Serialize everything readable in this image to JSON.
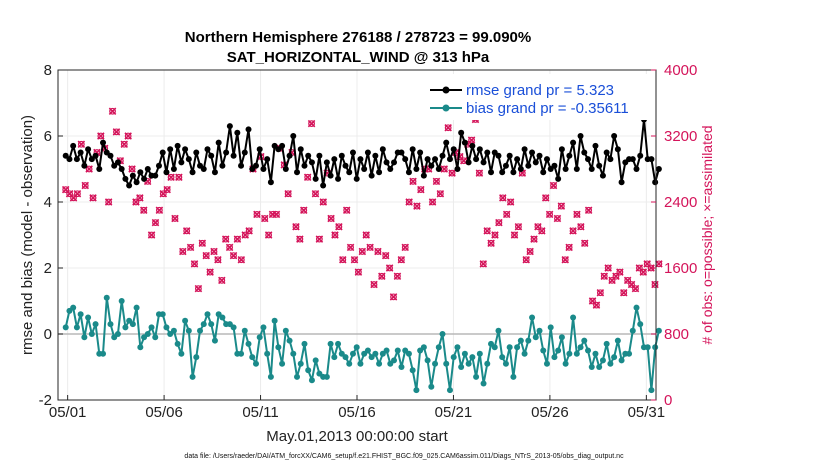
{
  "chart_data": {
    "type": "line",
    "title_line1": "Northern Hemisphere 276188 / 278723 = 99.090%",
    "title_line2": "SAT_HORIZONTAL_WIND @ 313 hPa",
    "xlabel": "May.01,2013 00:00:00 start",
    "ylabel_left": "rmse and bias (model - observation)",
    "ylabel_right": "# of obs: o=possible; ×=assimilated",
    "footnote": "data file: /Users/raeder/DAI/ATM_forcXX/CAM6_setup/f.e21.FHIST_BGC.f09_025.CAM6assim.011/Diags_NTrS_2013-05/obs_diag_output.nc",
    "xlim": [
      0.5,
      31.5
    ],
    "ylim_left": [
      -2,
      8
    ],
    "ylim_right": [
      0,
      4000
    ],
    "xticks": [
      1,
      6,
      11,
      16,
      21,
      26,
      31
    ],
    "xtick_labels": [
      "05/01",
      "05/06",
      "05/11",
      "05/16",
      "05/21",
      "05/26",
      "05/31"
    ],
    "yticks_left": [
      "-2",
      "0",
      "2",
      "4",
      "6",
      "8"
    ],
    "yticks_right": [
      "0",
      "800",
      "1600",
      "2400",
      "3200",
      "4000"
    ],
    "series": [
      {
        "name": "rmse",
        "legend": "rmse grand pr = 5.323",
        "color": "#000000",
        "marker": "filled-circle",
        "axis": "left",
        "values": [
          5.4,
          5.3,
          5.7,
          5.3,
          5.5,
          5.1,
          5.6,
          5.3,
          5.4,
          5.0,
          5.8,
          5.5,
          5.4,
          5.1,
          5.2,
          5.0,
          4.7,
          4.5,
          4.8,
          4.6,
          4.9,
          4.7,
          5.0,
          4.8,
          4.8,
          5.1,
          5.5,
          4.9,
          5.6,
          5.0,
          5.7,
          5.2,
          5.6,
          5.3,
          4.9,
          5.5,
          5.1,
          5.0,
          5.6,
          5.4,
          4.9,
          5.8,
          5.1,
          5.5,
          6.3,
          5.4,
          6.1,
          5.1,
          5.5,
          6.2,
          5.0,
          5.1,
          5.6,
          5.0,
          5.3,
          4.6,
          5.7,
          5.6,
          5.7,
          5.0,
          5.4,
          6.0,
          4.9,
          5.6,
          5.1,
          5.4,
          5.2,
          4.7,
          5.4,
          4.5,
          5.2,
          4.8,
          5.3,
          4.7,
          5.4,
          5.1,
          4.9,
          5.5,
          4.7,
          5.3,
          5.0,
          5.5,
          4.8,
          5.4,
          4.9,
          5.6,
          5.2,
          5.0,
          5.2,
          5.5,
          5.5,
          5.3,
          4.9,
          5.6,
          5.0,
          5.5,
          4.8,
          5.3,
          5.1,
          5.3,
          5.0,
          5.4,
          5.8,
          5.3,
          5.6,
          5.0,
          6.1,
          5.8,
          5.2,
          5.7,
          5.3,
          5.6,
          5.2,
          5.5,
          4.9,
          5.5,
          5.4,
          4.9,
          5.1,
          5.4,
          4.9,
          5.3,
          5.0,
          5.6,
          5.1,
          5.5,
          5.2,
          5.4,
          4.9,
          5.3,
          5.0,
          5.1,
          4.7,
          5.6,
          5.0,
          5.4,
          5.8,
          5.0,
          6.0,
          5.5,
          5.3,
          5.0,
          5.7,
          5.1,
          4.8,
          5.5,
          5.3,
          6.0,
          5.6,
          4.6,
          5.2,
          5.3,
          5.3,
          5.0,
          5.4,
          6.5,
          5.3,
          5.3,
          4.6,
          5.0
        ]
      },
      {
        "name": "bias",
        "legend": "bias grand pr = -0.35611",
        "color": "#1a8a8a",
        "marker": "filled-circle",
        "axis": "left",
        "values": [
          0.2,
          0.7,
          0.8,
          0.2,
          0.6,
          -0.1,
          0.5,
          0.0,
          0.3,
          -0.6,
          -0.6,
          1.1,
          0.3,
          -0.1,
          0.0,
          1.0,
          0.2,
          0.4,
          0.3,
          0.8,
          -0.4,
          -0.1,
          0.0,
          0.2,
          -0.1,
          0.6,
          0.6,
          0.2,
          0.0,
          0.1,
          -0.3,
          -0.6,
          0.4,
          0.1,
          -1.3,
          -0.7,
          0.1,
          0.3,
          0.6,
          0.3,
          -0.2,
          0.6,
          0.5,
          0.3,
          0.3,
          0.2,
          -0.6,
          -0.6,
          0.1,
          -0.3,
          -0.7,
          -0.9,
          -0.1,
          0.2,
          -0.6,
          -1.3,
          0.4,
          -0.4,
          -0.9,
          0.1,
          -0.2,
          -0.6,
          -1.3,
          -0.9,
          -0.3,
          -1.1,
          -1.4,
          -0.8,
          -1.2,
          -1.3,
          -1.3,
          -0.3,
          -0.7,
          -0.3,
          -0.6,
          -0.7,
          -0.9,
          -0.6,
          -0.4,
          -0.9,
          -0.6,
          -0.5,
          -0.7,
          -0.6,
          -0.9,
          -0.6,
          -0.5,
          -0.9,
          -0.8,
          -0.5,
          -1.0,
          -0.5,
          -0.6,
          -1.1,
          -1.7,
          -0.5,
          -0.4,
          -0.8,
          -1.6,
          -0.9,
          -0.4,
          0.0,
          -0.9,
          -1.7,
          -0.7,
          -0.4,
          -1.0,
          -0.6,
          -0.9,
          -0.7,
          -1.3,
          -0.6,
          -1.5,
          -0.9,
          -0.3,
          -0.4,
          0.1,
          -0.7,
          -0.9,
          -0.4,
          -1.3,
          -0.4,
          -0.2,
          -0.6,
          -0.2,
          0.5,
          -0.1,
          0.1,
          -0.5,
          -0.9,
          0.2,
          -0.7,
          -0.5,
          -0.1,
          -0.9,
          -0.6,
          0.5,
          -0.6,
          -0.4,
          -0.2,
          -0.5,
          -1.0,
          -0.6,
          -1.0,
          -0.8,
          -0.3,
          -0.9,
          -0.7,
          -0.2,
          -0.8,
          -0.6,
          -0.6,
          0.1,
          0.8,
          0.3,
          -0.4,
          -0.4,
          -1.7,
          -0.4,
          0.1
        ]
      },
      {
        "name": "obs",
        "legend": "",
        "color": "#d4145a",
        "marker": "o-and-x",
        "axis": "right",
        "values": [
          2550,
          2500,
          2450,
          2500,
          3100,
          2600,
          2800,
          2450,
          3000,
          3200,
          3050,
          2400,
          3500,
          3250,
          2900,
          3100,
          3200,
          2800,
          2400,
          2450,
          2300,
          2650,
          2000,
          2150,
          2300,
          2500,
          2550,
          2700,
          2200,
          2700,
          1800,
          2050,
          1850,
          1650,
          1350,
          1900,
          1750,
          1550,
          1800,
          1700,
          1450,
          1950,
          1850,
          1750,
          1950,
          1700,
          2000,
          2050,
          2800,
          2250,
          2950,
          2200,
          2000,
          2250,
          2250,
          3050,
          2850,
          2500,
          3000,
          2100,
          1950,
          2300,
          2700,
          3350,
          2500,
          1950,
          2400,
          2750,
          2200,
          2000,
          2100,
          1700,
          2300,
          1850,
          1700,
          1550,
          1800,
          2000,
          1850,
          1400,
          1800,
          1500,
          1750,
          1600,
          1250,
          1500,
          1700,
          1850,
          2400,
          2650,
          2350,
          2550,
          2800,
          2800,
          2400,
          2650,
          2500,
          2800,
          3300,
          2750,
          3000,
          2950,
          2900,
          3100,
          3150,
          3400,
          2750,
          1650,
          2050,
          1900,
          2000,
          2150,
          2450,
          2250,
          2400,
          2000,
          2100,
          2750,
          1700,
          1800,
          1950,
          2100,
          2050,
          2450,
          2250,
          2600,
          2200,
          2350,
          1700,
          1850,
          2050,
          2250,
          2100,
          1900,
          2300,
          1200,
          1150,
          1300,
          1500,
          1600,
          1450,
          1500,
          1550,
          1300,
          1450,
          1400,
          1350,
          1600,
          1550,
          1650,
          1600,
          1400,
          1650
        ]
      }
    ]
  },
  "colors": {
    "rmse": "#000000",
    "bias": "#1a8a8a",
    "obs": "#d4145a",
    "legend_text": "#1a4fd8",
    "zero_line": "#b8b8b8"
  }
}
